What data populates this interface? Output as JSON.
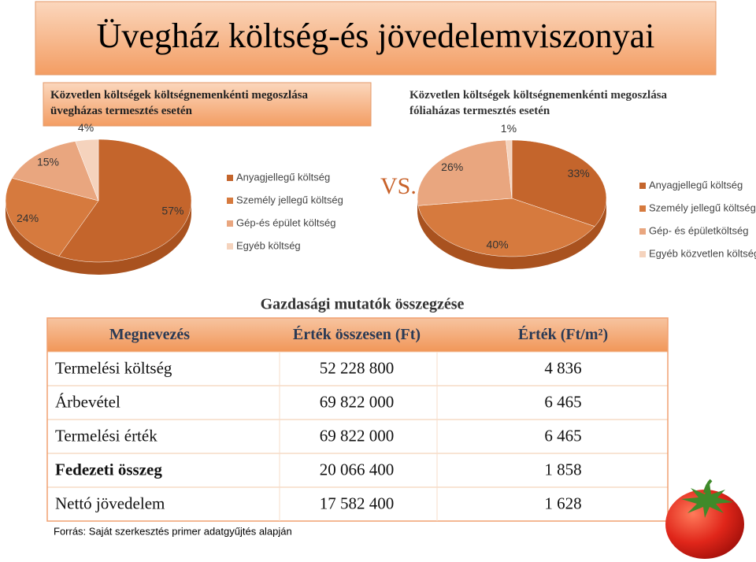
{
  "title": "Üvegház költség-és jövedelemviszonyai",
  "subtitles": [
    "Közvetlen költségek költségnemenkénti megoszlása üvegházas termesztés  esetén",
    "Közvetlen költségek költségnemenkénti megoszlása fóliaházas termesztés esetén"
  ],
  "vs": "VS.",
  "chart_data": [
    {
      "type": "pie",
      "categories": [
        "Anyagjellegű költség",
        "Személy jellegű költség",
        "Gép-és épület költség",
        "Egyéb költség"
      ],
      "values": [
        57,
        24,
        15,
        4
      ],
      "value_labels": [
        "57%",
        "24%",
        "15%",
        "4%"
      ],
      "colors": [
        "#c4652c",
        "#d67a3e",
        "#e9a67f",
        "#f5d3bd"
      ]
    },
    {
      "type": "pie",
      "categories": [
        "Anyagjellegű költség",
        "Személy jellegű költség",
        "Gép- és épületköltség",
        "Egyéb közvetlen költség"
      ],
      "values": [
        33,
        40,
        26,
        1
      ],
      "value_labels": [
        "33%",
        "40%",
        "26%",
        "1%"
      ],
      "colors": [
        "#c4652c",
        "#d67a3e",
        "#e9a67f",
        "#f5d3bd"
      ]
    }
  ],
  "table": {
    "caption": "Gazdasági mutatók összegzése",
    "header": [
      "Megnevezés",
      "Érték összesen (Ft)",
      "Érték (Ft/m²)"
    ],
    "rows": [
      [
        "Termelési költség",
        "52 228 800",
        "4 836"
      ],
      [
        "Árbevétel",
        "69 822 000",
        "6 465"
      ],
      [
        "Termelési érték",
        "69 822 000",
        "6 465"
      ],
      [
        "Fedezeti összeg",
        "20 066 400",
        "1 858"
      ],
      [
        "Nettó jövedelem",
        "17 582 400",
        "1 628"
      ]
    ]
  },
  "source": "Forrás: Saját szerkesztés primer adatgyűjtés alapján"
}
